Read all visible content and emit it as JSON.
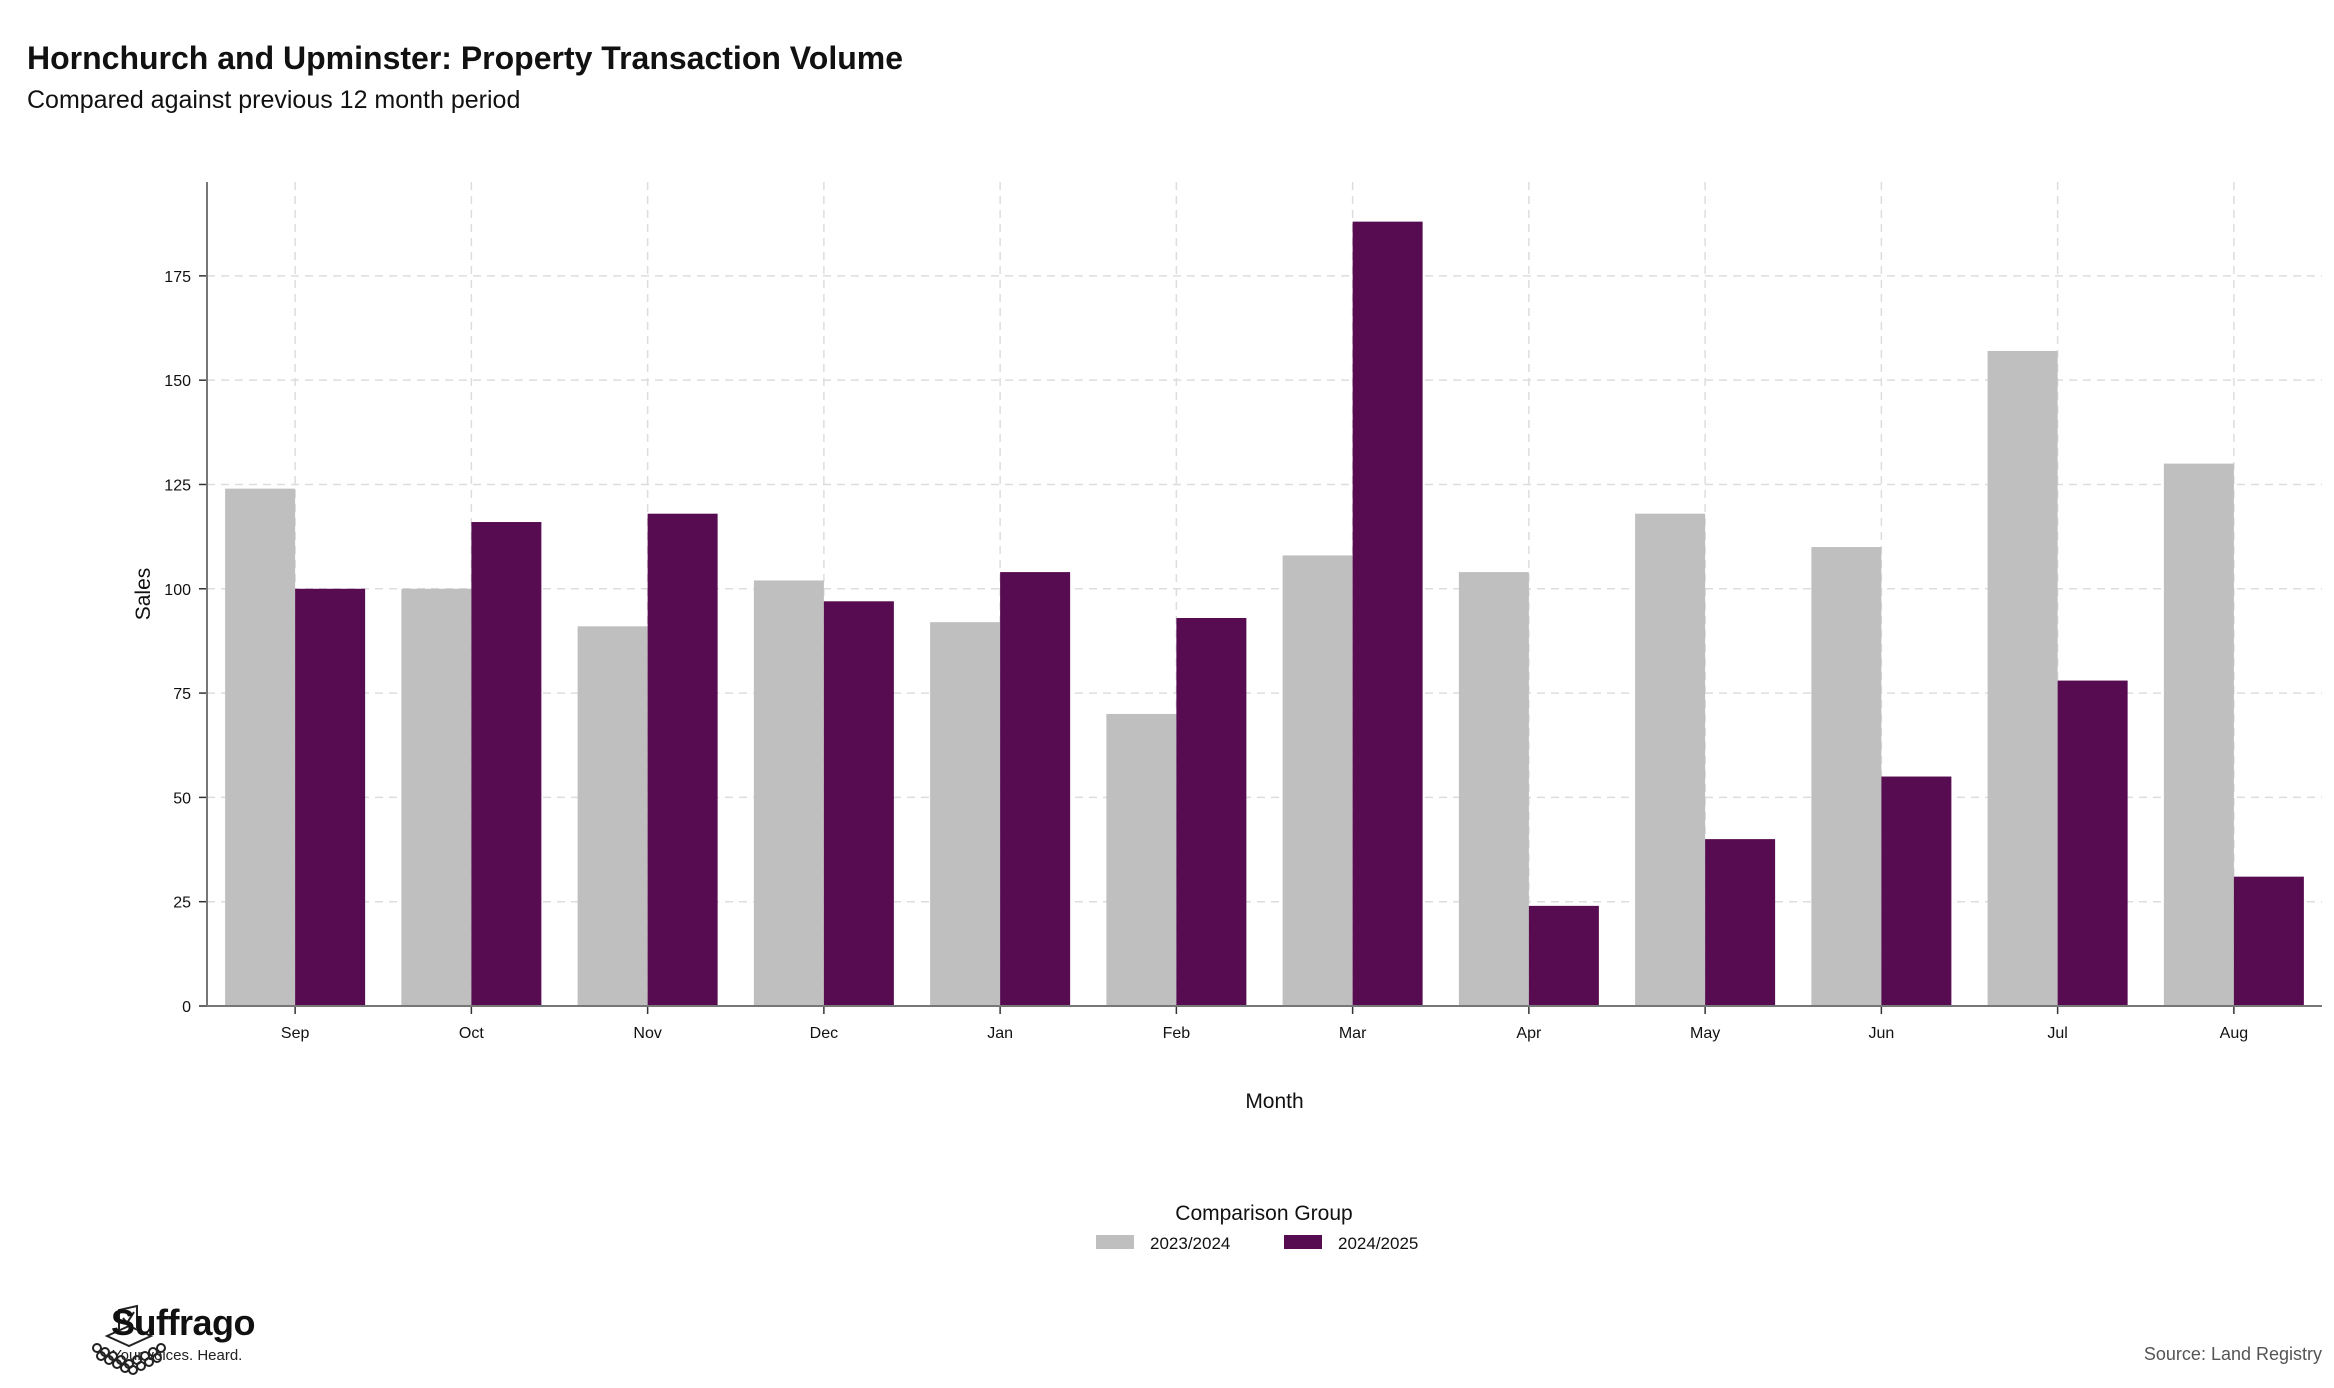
{
  "title": "Hornchurch and Upminster: Property Transaction Volume",
  "subtitle": "Compared against previous 12 month period",
  "chart_data": {
    "type": "bar",
    "categories": [
      "Sep",
      "Oct",
      "Nov",
      "Dec",
      "Jan",
      "Feb",
      "Mar",
      "Apr",
      "May",
      "Jun",
      "Jul",
      "Aug"
    ],
    "series": [
      {
        "name": "2023/2024",
        "color": "#bfbfbf",
        "values": [
          124,
          100,
          91,
          102,
          92,
          70,
          108,
          104,
          118,
          110,
          157,
          130
        ]
      },
      {
        "name": "2024/2025",
        "color": "#570b51",
        "values": [
          100,
          116,
          118,
          97,
          104,
          93,
          188,
          24,
          40,
          55,
          78,
          31
        ]
      }
    ],
    "xlabel": "Month",
    "ylabel": "Sales",
    "ylim": [
      0,
      197.5
    ],
    "yticks": [
      0,
      25,
      50,
      75,
      100,
      125,
      150,
      175
    ],
    "grid": true,
    "legend": {
      "title": "Comparison Group",
      "placement": "bottom"
    }
  },
  "brand": {
    "name": "Suffrago",
    "tagline": "Your voices. Heard."
  },
  "source": "Source: Land Registry"
}
